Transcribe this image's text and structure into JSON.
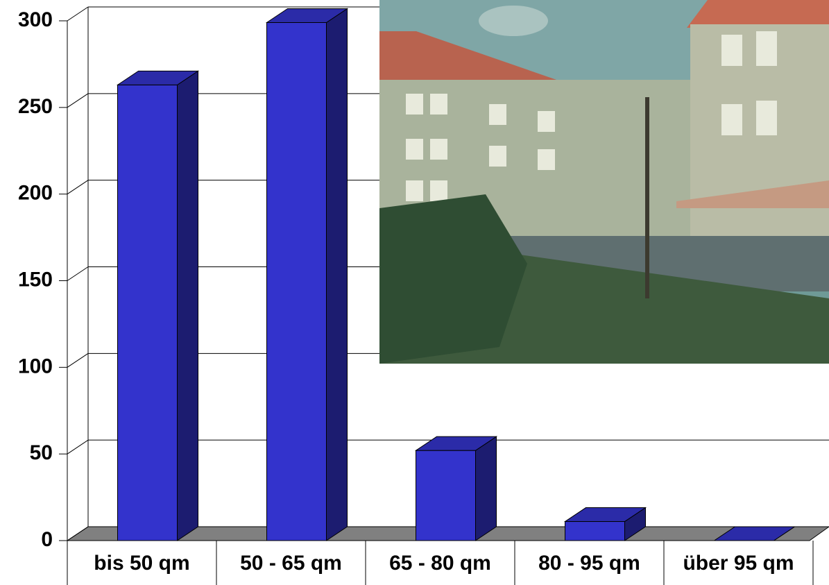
{
  "chart_data": {
    "type": "bar3d",
    "categories": [
      "bis 50 qm",
      "50 - 65 qm",
      "65 - 80 qm",
      "80 - 95 qm",
      "über 95 qm"
    ],
    "values": [
      263,
      299,
      52,
      11,
      0
    ],
    "color": "#3333cc",
    "ylim": [
      0,
      300
    ],
    "yticks": [
      0,
      50,
      100,
      150,
      200,
      250,
      300
    ],
    "grid": true
  }
}
